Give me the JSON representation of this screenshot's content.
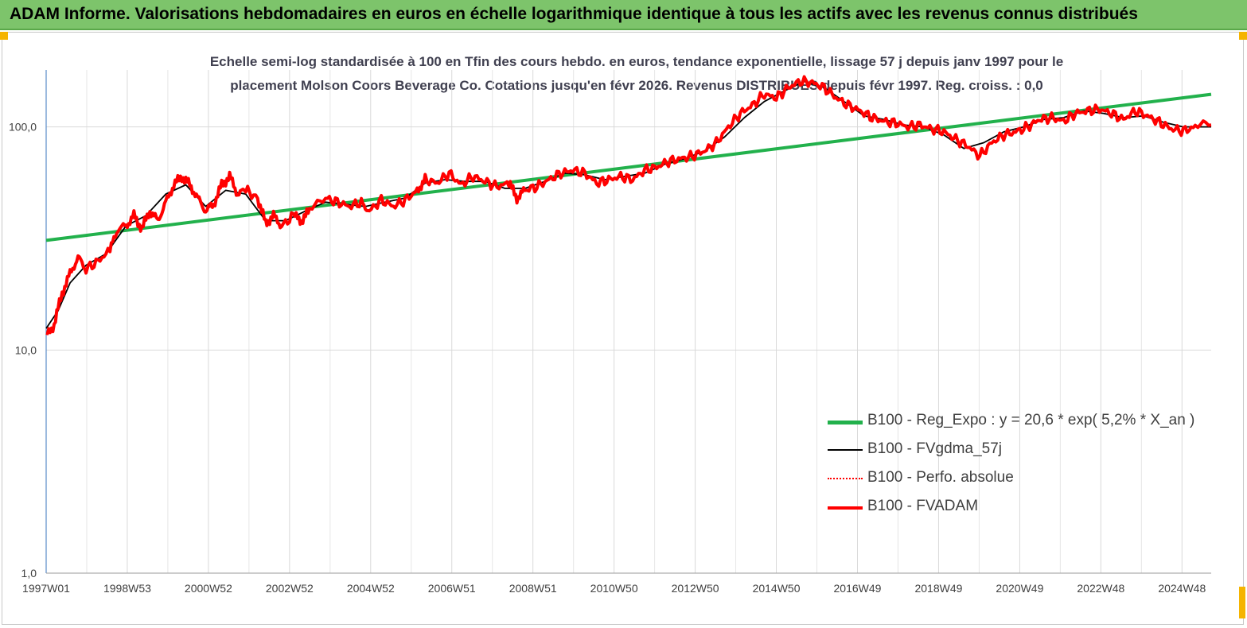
{
  "header": {
    "title": "ADAM Informe. Valorisations hebdomadaires en euros en échelle logarithmique identique à tous les actifs avec les revenus connus distribués"
  },
  "chart_data": {
    "type": "line",
    "title_line1": "Echelle semi-log standardisée à 100 en Tfin des cours hebdo. en euros, tendance exponentielle, lissage 57 j depuis janv 1997 pour le",
    "title_line2": "placement Molson Coors Beverage Co. Cotations jusqu'en févr 2026. Revenus DISTRIBUES depuis févr 1997. Reg. croiss. : 0,0",
    "y_scale": "log",
    "ylim": [
      1,
      180
    ],
    "y_ticks": [
      "1,0",
      "10,0",
      "100,0"
    ],
    "x_range": [
      1997.0,
      2026.2
    ],
    "x_tick_labels": [
      "1997W01",
      "1998W53",
      "2000W52",
      "2002W52",
      "2004W52",
      "2006W51",
      "2008W51",
      "2010W50",
      "2012W50",
      "2014W50",
      "2016W49",
      "2018W49",
      "2020W49",
      "2022W48",
      "2024W48"
    ],
    "legend_position": "bottom-right",
    "grid": "vertical",
    "series": [
      {
        "name": "B100 - Reg_Expo : y = 20,6 *  exp( 5,2% *  X_an )",
        "color": "#22b14c",
        "style": "thick",
        "points": [
          [
            1997.0,
            31
          ],
          [
            2026.2,
            140
          ]
        ]
      },
      {
        "name": "B100 - FVgdma_57j",
        "color": "#000000",
        "style": "thin",
        "points": [
          [
            1997.0,
            12.5
          ],
          [
            1997.3,
            15
          ],
          [
            1997.6,
            20
          ],
          [
            1998.0,
            24
          ],
          [
            1998.5,
            27
          ],
          [
            1999.0,
            36
          ],
          [
            1999.5,
            40
          ],
          [
            2000.0,
            50
          ],
          [
            2000.5,
            55
          ],
          [
            2001.0,
            44
          ],
          [
            2001.5,
            52
          ],
          [
            2002.0,
            50
          ],
          [
            2002.5,
            38
          ],
          [
            2003.0,
            38
          ],
          [
            2003.5,
            42
          ],
          [
            2004.0,
            46
          ],
          [
            2004.5,
            45
          ],
          [
            2005.0,
            44
          ],
          [
            2005.5,
            46
          ],
          [
            2006.0,
            48
          ],
          [
            2006.5,
            56
          ],
          [
            2007.0,
            58
          ],
          [
            2007.5,
            57
          ],
          [
            2008.0,
            57
          ],
          [
            2008.5,
            53
          ],
          [
            2009.0,
            53
          ],
          [
            2009.5,
            57
          ],
          [
            2010.0,
            62
          ],
          [
            2010.5,
            61
          ],
          [
            2011.0,
            58
          ],
          [
            2011.5,
            60
          ],
          [
            2012.0,
            62
          ],
          [
            2012.5,
            68
          ],
          [
            2013.0,
            72
          ],
          [
            2013.5,
            78
          ],
          [
            2014.0,
            90
          ],
          [
            2014.5,
            110
          ],
          [
            2015.0,
            130
          ],
          [
            2015.5,
            145
          ],
          [
            2016.0,
            160
          ],
          [
            2016.5,
            150
          ],
          [
            2017.0,
            130
          ],
          [
            2017.5,
            112
          ],
          [
            2018.0,
            108
          ],
          [
            2018.5,
            102
          ],
          [
            2019.0,
            100
          ],
          [
            2019.5,
            92
          ],
          [
            2020.0,
            80
          ],
          [
            2020.5,
            85
          ],
          [
            2021.0,
            95
          ],
          [
            2021.5,
            100
          ],
          [
            2022.0,
            108
          ],
          [
            2022.5,
            110
          ],
          [
            2023.0,
            118
          ],
          [
            2023.5,
            115
          ],
          [
            2024.0,
            110
          ],
          [
            2024.5,
            112
          ],
          [
            2025.0,
            105
          ],
          [
            2025.5,
            100
          ],
          [
            2026.2,
            100
          ]
        ]
      },
      {
        "name": "B100 - Perfo. absolue",
        "color": "#ff0000",
        "style": "dotted",
        "points": []
      },
      {
        "name": "B100 - FVADAM",
        "color": "#ff0000",
        "style": "thick",
        "points": [
          [
            1997.0,
            11.5
          ],
          [
            1997.2,
            13
          ],
          [
            1997.4,
            18
          ],
          [
            1997.6,
            22
          ],
          [
            1997.8,
            26
          ],
          [
            1998.0,
            23
          ],
          [
            1998.3,
            25
          ],
          [
            1998.6,
            28
          ],
          [
            1998.8,
            35
          ],
          [
            1999.0,
            36
          ],
          [
            1999.2,
            40
          ],
          [
            1999.4,
            35
          ],
          [
            1999.6,
            42
          ],
          [
            1999.8,
            38
          ],
          [
            2000.0,
            46
          ],
          [
            2000.2,
            55
          ],
          [
            2000.4,
            60
          ],
          [
            2000.6,
            55
          ],
          [
            2000.8,
            48
          ],
          [
            2001.0,
            42
          ],
          [
            2001.2,
            45
          ],
          [
            2001.4,
            55
          ],
          [
            2001.6,
            60
          ],
          [
            2001.8,
            50
          ],
          [
            2002.0,
            52
          ],
          [
            2002.3,
            48
          ],
          [
            2002.5,
            37
          ],
          [
            2002.7,
            40
          ],
          [
            2002.9,
            36
          ],
          [
            2003.2,
            40
          ],
          [
            2003.4,
            38
          ],
          [
            2003.6,
            42
          ],
          [
            2004.0,
            48
          ],
          [
            2004.3,
            46
          ],
          [
            2004.6,
            44
          ],
          [
            2004.9,
            46
          ],
          [
            2005.1,
            42
          ],
          [
            2005.4,
            47
          ],
          [
            2005.7,
            44
          ],
          [
            2006.0,
            47
          ],
          [
            2006.3,
            52
          ],
          [
            2006.5,
            58
          ],
          [
            2006.8,
            56
          ],
          [
            2007.1,
            62
          ],
          [
            2007.4,
            55
          ],
          [
            2007.7,
            60
          ],
          [
            2008.0,
            57
          ],
          [
            2008.3,
            54
          ],
          [
            2008.6,
            56
          ],
          [
            2008.8,
            48
          ],
          [
            2009.0,
            52
          ],
          [
            2009.3,
            54
          ],
          [
            2009.6,
            58
          ],
          [
            2009.9,
            62
          ],
          [
            2010.2,
            64
          ],
          [
            2010.5,
            62
          ],
          [
            2010.8,
            56
          ],
          [
            2011.1,
            58
          ],
          [
            2011.4,
            60
          ],
          [
            2011.7,
            58
          ],
          [
            2012.0,
            64
          ],
          [
            2012.3,
            66
          ],
          [
            2012.6,
            70
          ],
          [
            2012.9,
            72
          ],
          [
            2013.2,
            74
          ],
          [
            2013.5,
            78
          ],
          [
            2013.8,
            85
          ],
          [
            2014.1,
            100
          ],
          [
            2014.4,
            115
          ],
          [
            2014.7,
            125
          ],
          [
            2015.0,
            140
          ],
          [
            2015.3,
            135
          ],
          [
            2015.6,
            150
          ],
          [
            2015.9,
            160
          ],
          [
            2016.2,
            158
          ],
          [
            2016.5,
            150
          ],
          [
            2016.8,
            135
          ],
          [
            2017.1,
            125
          ],
          [
            2017.4,
            118
          ],
          [
            2017.7,
            110
          ],
          [
            2018.0,
            106
          ],
          [
            2018.3,
            104
          ],
          [
            2018.6,
            100
          ],
          [
            2018.9,
            102
          ],
          [
            2019.2,
            98
          ],
          [
            2019.5,
            95
          ],
          [
            2019.8,
            88
          ],
          [
            2020.1,
            82
          ],
          [
            2020.4,
            74
          ],
          [
            2020.7,
            85
          ],
          [
            2021.0,
            92
          ],
          [
            2021.3,
            95
          ],
          [
            2021.6,
            100
          ],
          [
            2021.9,
            108
          ],
          [
            2022.2,
            110
          ],
          [
            2022.5,
            106
          ],
          [
            2022.8,
            115
          ],
          [
            2023.1,
            118
          ],
          [
            2023.4,
            120
          ],
          [
            2023.7,
            115
          ],
          [
            2024.0,
            108
          ],
          [
            2024.3,
            118
          ],
          [
            2024.6,
            112
          ],
          [
            2024.9,
            105
          ],
          [
            2025.2,
            98
          ],
          [
            2025.5,
            96
          ],
          [
            2025.8,
            100
          ],
          [
            2026.2,
            102
          ]
        ]
      }
    ]
  }
}
